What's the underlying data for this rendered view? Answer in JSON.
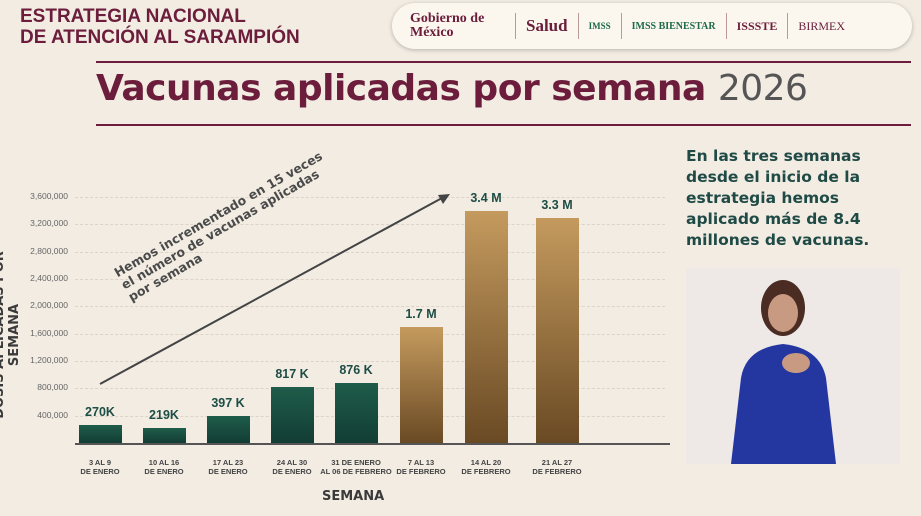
{
  "header": {
    "line1": "ESTRATEGIA NACIONAL",
    "line2": "DE ATENCIÓN AL SARAMPIÓN"
  },
  "logos": [
    "Gobierno de México",
    "Salud",
    "IMSS",
    "IMSS BIENESTAR",
    "ISSSTE",
    "BIRMEX"
  ],
  "title": {
    "main": "Vacunas aplicadas por semana",
    "year": "2026"
  },
  "side_text": "En las tres semanas desde el inicio de la estrategia hemos aplicado más de 8.4 millones de vacunas.",
  "chart_data": {
    "type": "bar",
    "title": "Vacunas aplicadas por semana 2026",
    "xlabel": "SEMANA",
    "ylabel": "DOSIS APLICADAS POR SEMANA",
    "ylim": [
      0,
      3600000
    ],
    "yticks": [
      "400,000",
      "800,000",
      "1,200,000",
      "1,600,000",
      "2,000,000",
      "2,400,000",
      "2,800,000",
      "3,200,000",
      "3,600,000"
    ],
    "categories": [
      [
        "3 AL 9",
        "DE ENERO"
      ],
      [
        "10 AL 16",
        "DE ENERO"
      ],
      [
        "17 AL 23",
        "DE ENERO"
      ],
      [
        "24 AL 30",
        "DE ENERO"
      ],
      [
        "31 DE ENERO",
        "AL 06 DE FEBRERO"
      ],
      [
        "7 AL 13",
        "DE FEBRERO"
      ],
      [
        "14 AL 20",
        "DE FEBRERO"
      ],
      [
        "21 AL 27",
        "DE FEBRERO"
      ]
    ],
    "values": [
      270000,
      219000,
      397000,
      817000,
      876000,
      1700000,
      3400000,
      3300000
    ],
    "data_labels": [
      "270K",
      "219K",
      "397 K",
      "817 K",
      "876 K",
      "1.7 M",
      "3.4 M",
      "3.3 M"
    ],
    "colors": {
      "green": "#1e5a48",
      "gold": "#b88d52"
    },
    "annotation": [
      "Hemos incrementado en 15 veces",
      "el número de vacunas aplicadas",
      "por semana"
    ],
    "grid": true
  }
}
